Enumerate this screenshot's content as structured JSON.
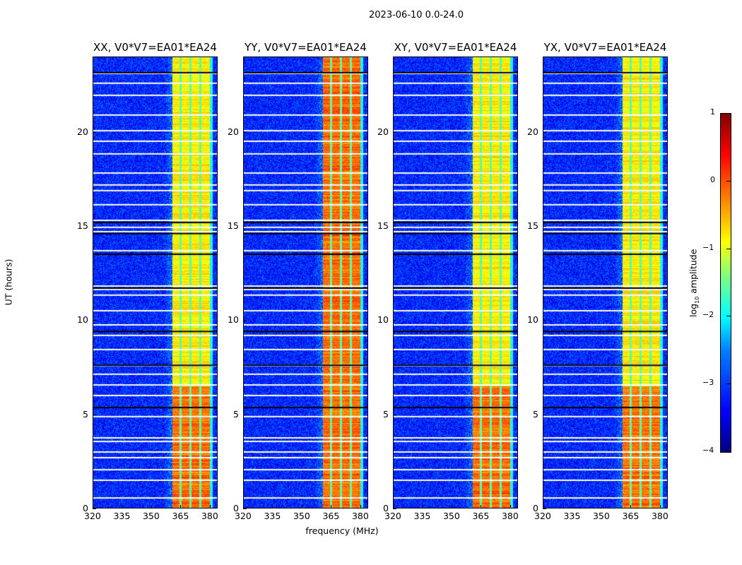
{
  "chart_data": {
    "type": "heatmap",
    "title": "2023-06-10 0.0-24.0",
    "xlabel": "frequency (MHz)",
    "ylabel": "UT (hours)",
    "xlim": [
      320,
      384
    ],
    "ylim": [
      0,
      24
    ],
    "xticks": [
      320,
      335,
      350,
      365,
      380
    ],
    "yticks": [
      0,
      5,
      10,
      15,
      20
    ],
    "colorbar": {
      "label": "log10 amplitude",
      "label_main": "log",
      "label_sub": "10",
      "label_rest": " amplitude",
      "range": [
        -4,
        1
      ],
      "ticks": [
        1,
        0,
        -1,
        -2,
        -3,
        -4
      ],
      "tick_labels": [
        "1",
        "0",
        "−1",
        "−2",
        "−3",
        "−4"
      ]
    },
    "colormap": "jet",
    "background_level": -3.2,
    "band_mhz": [
      360.5,
      380
    ],
    "band_level": -0.8,
    "channel_gaps_mhz": [
      365,
      370,
      375
    ],
    "flagged_white_ut": [
      23.1,
      22.58,
      21.94,
      20.89,
      20.06,
      19.5,
      18.83,
      17.81,
      17.18,
      16.88,
      16.13,
      15.3,
      14.93,
      14.7,
      13.69,
      11.81,
      11.63,
      11.33,
      10.5,
      9.75,
      9.19,
      8.44,
      7.58,
      7.13,
      6.56,
      6.0,
      4.88,
      3.75,
      3.56,
      3.0,
      2.7,
      2.06,
      1.5,
      0.56
    ],
    "flagged_black_ut": [
      23.14,
      15.19,
      14.6,
      13.5,
      11.7,
      9.4,
      7.6,
      5.36
    ],
    "panels": [
      {
        "title": "XX, V0*V7=EA01*EA24",
        "strong_ut": [
          0,
          6.5
        ]
      },
      {
        "title": "YY, V0*V7=EA01*EA24",
        "strong_ut": [
          0,
          24
        ]
      },
      {
        "title": "XY, V0*V7=EA01*EA24",
        "strong_ut": [
          0,
          6.5
        ]
      },
      {
        "title": "YX, V0*V7=EA01*EA24",
        "strong_ut": [
          0,
          6.5
        ]
      }
    ]
  }
}
